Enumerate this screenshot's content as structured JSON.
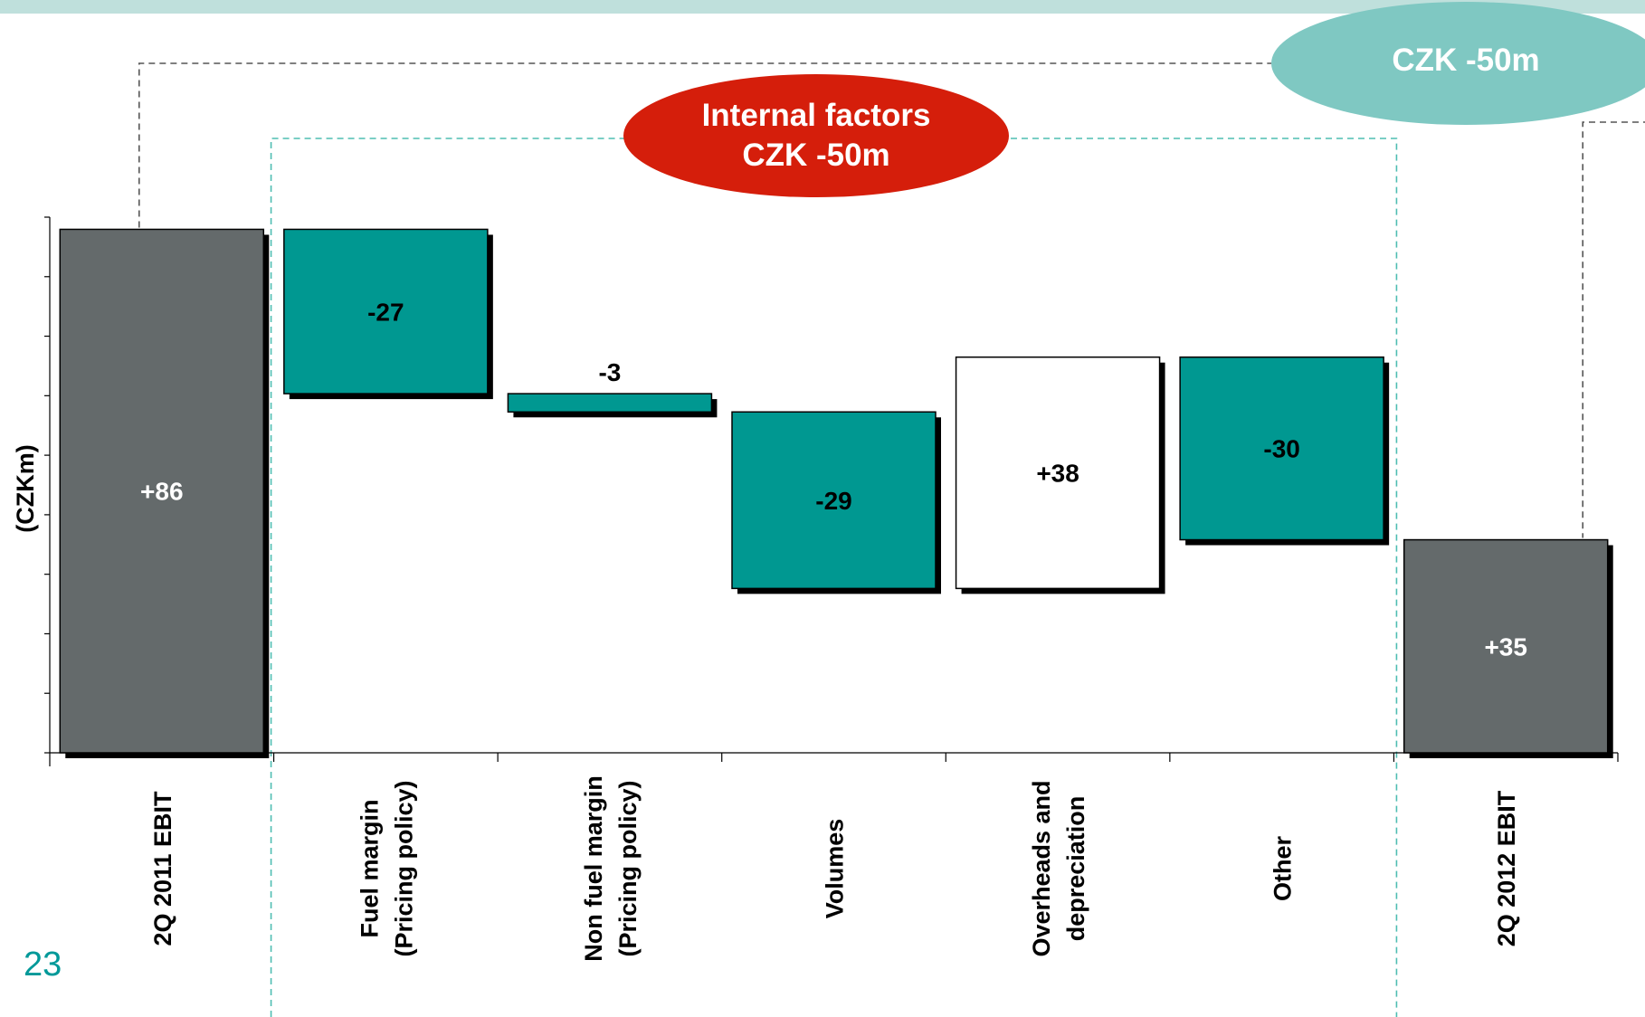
{
  "page_number": "23",
  "colors": {
    "top_band": "#bfe0dc",
    "total_bar": "#646a6b",
    "negative_bar": "#009891",
    "positive_bar": "#ffffff",
    "internal_ellipse": "#d51e0b",
    "total_ellipse": "#7fc8c2",
    "shadow": "#000000",
    "teal_dash": "#4fbdb2"
  },
  "internal_factors": {
    "line1": "Internal factors",
    "line2": "CZK -50m"
  },
  "total_change_label": "CZK -50m",
  "chart_data": {
    "type": "waterfall",
    "ylabel": "(CZKm)",
    "ylim": [
      0,
      88
    ],
    "categories": [
      [
        "2Q 2011 EBIT"
      ],
      [
        "Fuel margin",
        "(Pricing policy)"
      ],
      [
        "Non fuel margin",
        "(Pricing policy)"
      ],
      [
        "Volumes"
      ],
      [
        "Overheads and",
        "depreciation"
      ],
      [
        "Other"
      ],
      [
        "2Q 2012 EBIT"
      ]
    ],
    "bars": [
      {
        "kind": "total",
        "start": 0,
        "end": 86,
        "label": "+86"
      },
      {
        "kind": "negative",
        "start": 86,
        "end": 59,
        "label": "-27"
      },
      {
        "kind": "negative",
        "start": 59,
        "end": 56,
        "label": "-3"
      },
      {
        "kind": "negative",
        "start": 56,
        "end": 27,
        "label": "-29"
      },
      {
        "kind": "positive",
        "start": 27,
        "end": 65,
        "label": "+38"
      },
      {
        "kind": "negative",
        "start": 65,
        "end": 35,
        "label": "-30"
      },
      {
        "kind": "total",
        "start": 0,
        "end": 35,
        "label": "+35"
      }
    ]
  }
}
